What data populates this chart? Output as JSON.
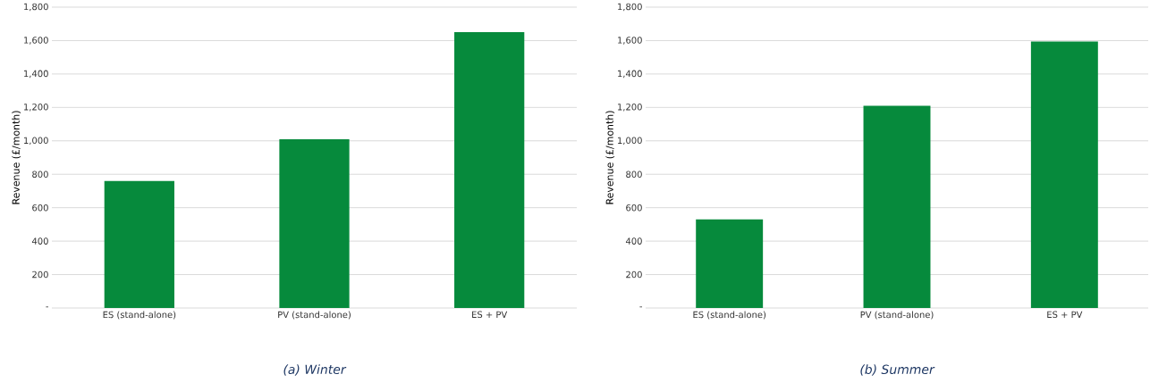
{
  "chart_data": [
    {
      "type": "bar",
      "title": "(a) Winter",
      "ylabel": "Revenue (£/month)",
      "categories": [
        "ES (stand-alone)",
        "PV (stand-alone)",
        "ES + PV"
      ],
      "values": [
        760,
        1010,
        1650
      ],
      "color": "#068a3c",
      "ylim": [
        0,
        1800
      ],
      "yticks": [
        {
          "value": 0,
          "label": "-"
        },
        {
          "value": 200,
          "label": "200"
        },
        {
          "value": 400,
          "label": "400"
        },
        {
          "value": 600,
          "label": "600"
        },
        {
          "value": 800,
          "label": "800"
        },
        {
          "value": 1000,
          "label": "1,000"
        },
        {
          "value": 1200,
          "label": "1,200"
        },
        {
          "value": 1400,
          "label": "1,400"
        },
        {
          "value": 1600,
          "label": "1,600"
        },
        {
          "value": 1800,
          "label": "1,800"
        }
      ],
      "grid": "y"
    },
    {
      "type": "bar",
      "title": "(b) Summer",
      "ylabel": "Revenue (£/month)",
      "categories": [
        "ES (stand-alone)",
        "PV (stand-alone)",
        "ES + PV"
      ],
      "values": [
        530,
        1210,
        1595
      ],
      "color": "#068a3c",
      "ylim": [
        0,
        1800
      ],
      "yticks": [
        {
          "value": 0,
          "label": "-"
        },
        {
          "value": 200,
          "label": "200"
        },
        {
          "value": 400,
          "label": "400"
        },
        {
          "value": 600,
          "label": "600"
        },
        {
          "value": 800,
          "label": "800"
        },
        {
          "value": 1000,
          "label": "1,000"
        },
        {
          "value": 1200,
          "label": "1,200"
        },
        {
          "value": 1400,
          "label": "1,400"
        },
        {
          "value": 1600,
          "label": "1,600"
        },
        {
          "value": 1800,
          "label": "1,800"
        }
      ],
      "grid": "y"
    }
  ]
}
